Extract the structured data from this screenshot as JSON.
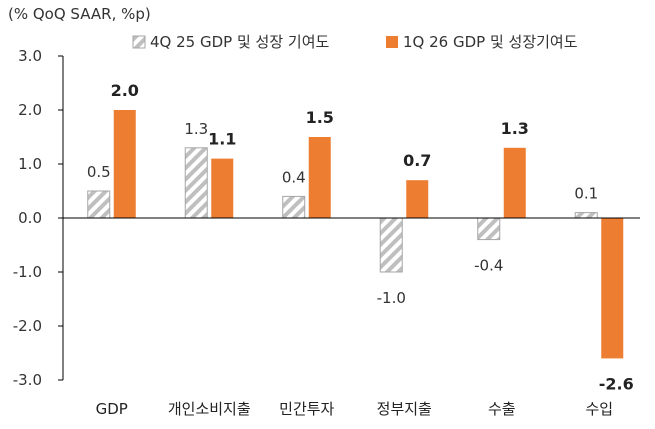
{
  "chart_data": {
    "type": "bar",
    "unit_label": "(% QoQ SAAR, %p)",
    "categories": [
      "GDP",
      "개인소비지출",
      "민간투자",
      "정부지출",
      "수출",
      "수입"
    ],
    "series": [
      {
        "name": "4Q 25 GDP 및 성장 기여도",
        "values": [
          0.5,
          1.3,
          0.4,
          -1.0,
          -0.4,
          0.1
        ],
        "labels": [
          "0.5",
          "1.3",
          "0.4",
          "-1.0",
          "-0.4",
          "0.1"
        ],
        "style": "hatched",
        "color": "#d9d9d9"
      },
      {
        "name": "1Q 26 GDP 및 성장기여도",
        "values": [
          2.0,
          1.1,
          1.5,
          0.7,
          1.3,
          -2.6
        ],
        "labels": [
          "2.0",
          "1.1",
          "1.5",
          "0.7",
          "1.3",
          "-2.6"
        ],
        "style": "solid",
        "color": "#ed7d31"
      }
    ],
    "ylim": [
      -3.0,
      3.0
    ],
    "yticks": [
      "3.0",
      "2.0",
      "1.0",
      "0.0",
      "-1.0",
      "-2.0",
      "-3.0"
    ],
    "grid": false,
    "legend_position": "top"
  }
}
